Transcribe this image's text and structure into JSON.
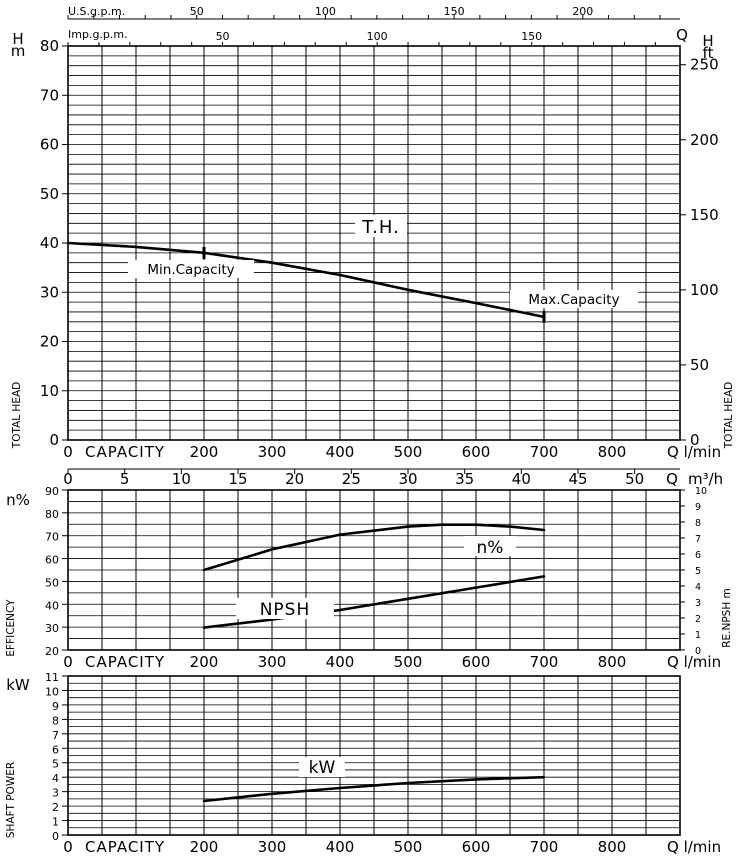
{
  "chart_data": [
    {
      "type": "line",
      "title": "T.H.",
      "xlabel": "CAPACITY",
      "x_unit": "Q l/min",
      "ylabel_left": "H m",
      "ylabel_right": "H ft",
      "side_label": "TOTAL HEAD",
      "xlim": [
        0,
        900
      ],
      "ylim": [
        0,
        80
      ],
      "x_ticks": [
        "0",
        "200",
        "300",
        "400",
        "500",
        "600",
        "700",
        "800"
      ],
      "y_ticks_left": [
        "0",
        "10",
        "20",
        "30",
        "40",
        "50",
        "60",
        "70",
        "80"
      ],
      "y_ticks_right": [
        "0",
        "50",
        "100",
        "150",
        "200",
        "250"
      ],
      "top_axis_usgpm": {
        "label": "U.S.g.p.m.",
        "ticks": [
          "50",
          "100",
          "150",
          "200"
        ]
      },
      "top_axis_impgpm": {
        "label": "Imp.g.p.m.",
        "ticks": [
          "50",
          "100",
          "150"
        ]
      },
      "series": [
        {
          "name": "T.H.",
          "x": [
            0,
            100,
            200,
            300,
            400,
            500,
            600,
            700
          ],
          "y": [
            40,
            39.2,
            38,
            36,
            33.5,
            30.5,
            27.8,
            25
          ]
        }
      ],
      "annotations": {
        "min_capacity": {
          "label": "Min.Capacity",
          "x": 200,
          "y": 38
        },
        "max_capacity": {
          "label": "Max.Capacity",
          "x": 700,
          "y": 25
        }
      }
    },
    {
      "type": "line",
      "x_axis_top": {
        "label": "m³/h",
        "ticks": [
          "0",
          "5",
          "10",
          "15",
          "20",
          "25",
          "30",
          "35",
          "40",
          "45",
          "50"
        ],
        "end_label": "Q"
      },
      "xlabel": "CAPACITY",
      "x_unit": "Q l/min",
      "ylabel_left": "n%",
      "ylabel_right": "RE.NPSH m",
      "side_label": "EFFICENCY",
      "xlim": [
        0,
        900
      ],
      "ylim": [
        20,
        90
      ],
      "right_lim": [
        0,
        10
      ],
      "x_ticks": [
        "0",
        "200",
        "300",
        "400",
        "500",
        "600",
        "700",
        "800"
      ],
      "y_ticks_left": [
        "20",
        "30",
        "40",
        "50",
        "60",
        "70",
        "80",
        "90"
      ],
      "y_ticks_right": [
        "0",
        "1",
        "2",
        "3",
        "4",
        "5",
        "6",
        "7",
        "8",
        "9",
        "10"
      ],
      "series": [
        {
          "name": "n%",
          "x": [
            200,
            300,
            400,
            500,
            550,
            600,
            650,
            700
          ],
          "y": [
            55,
            64,
            70.5,
            74,
            74.8,
            74.8,
            74,
            72.5
          ]
        },
        {
          "name": "NPSH",
          "x": [
            200,
            300,
            400,
            500,
            600,
            700
          ],
          "y": [
            1.4,
            1.9,
            2.5,
            3.2,
            3.9,
            4.6
          ]
        }
      ]
    },
    {
      "type": "line",
      "xlabel": "CAPACITY",
      "x_unit": "Q l/min",
      "ylabel_left": "kW",
      "side_label": "SHAFT POWER",
      "xlim": [
        0,
        900
      ],
      "ylim": [
        0,
        11
      ],
      "x_ticks": [
        "0",
        "200",
        "300",
        "400",
        "500",
        "600",
        "700",
        "800"
      ],
      "y_ticks_left": [
        "0",
        "1",
        "2",
        "3",
        "4",
        "5",
        "6",
        "7",
        "8",
        "9",
        "10",
        "11"
      ],
      "series": [
        {
          "name": "kW",
          "x": [
            200,
            300,
            400,
            500,
            600,
            700
          ],
          "y": [
            2.35,
            2.85,
            3.25,
            3.6,
            3.85,
            4.0
          ]
        }
      ]
    }
  ]
}
